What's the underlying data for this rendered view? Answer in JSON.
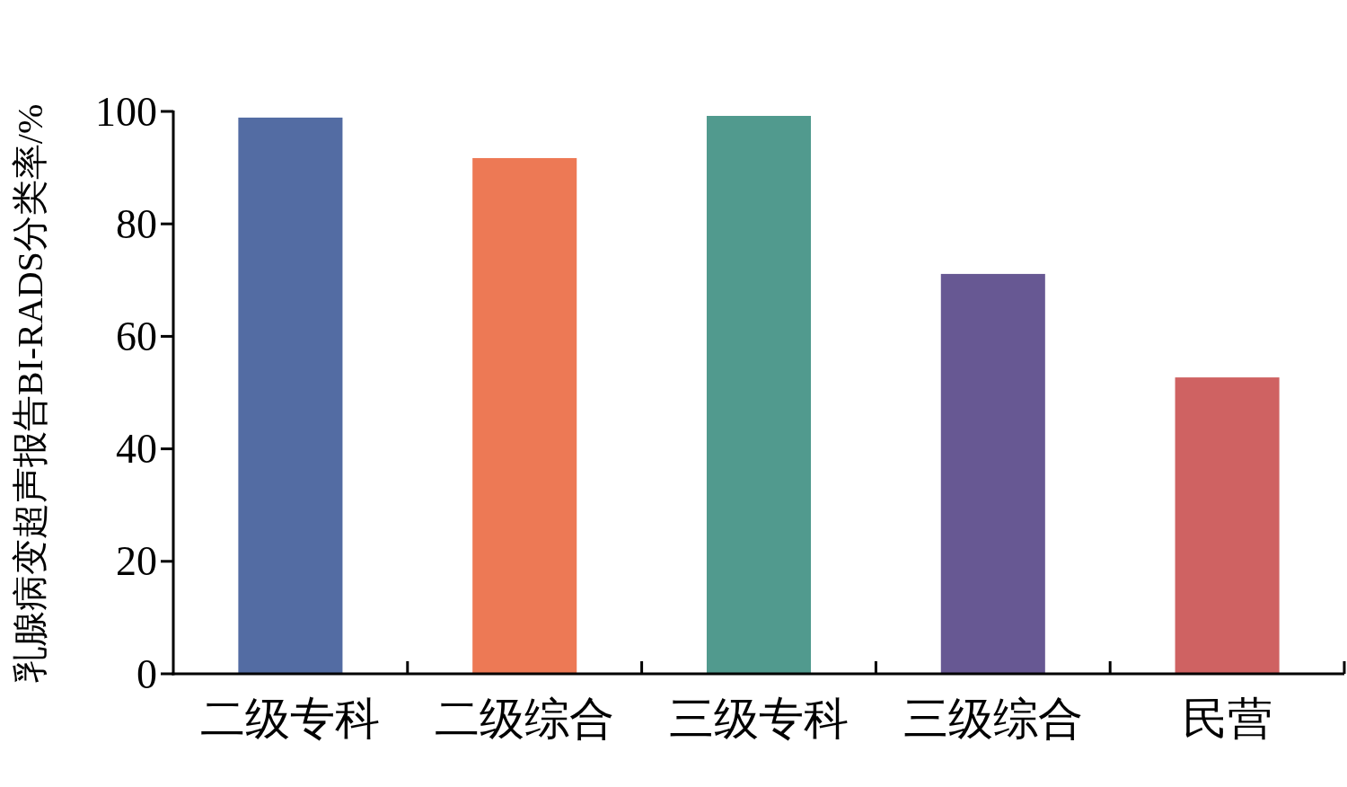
{
  "chart_data": {
    "type": "bar",
    "ylabel": "乳腺病变超声报告BI-RADS分类率/%",
    "categories": [
      "二级专科",
      "二级综合",
      "三级专科",
      "三级综合",
      "民营"
    ],
    "values": [
      98.9,
      91.7,
      99.2,
      71.1,
      52.7
    ],
    "colors": [
      "#536ca3",
      "#ed7955",
      "#519a8e",
      "#675893",
      "#cf6262"
    ],
    "ylim": [
      0,
      100
    ],
    "yticks": [
      0,
      20,
      40,
      60,
      80,
      100
    ],
    "grid": false
  }
}
